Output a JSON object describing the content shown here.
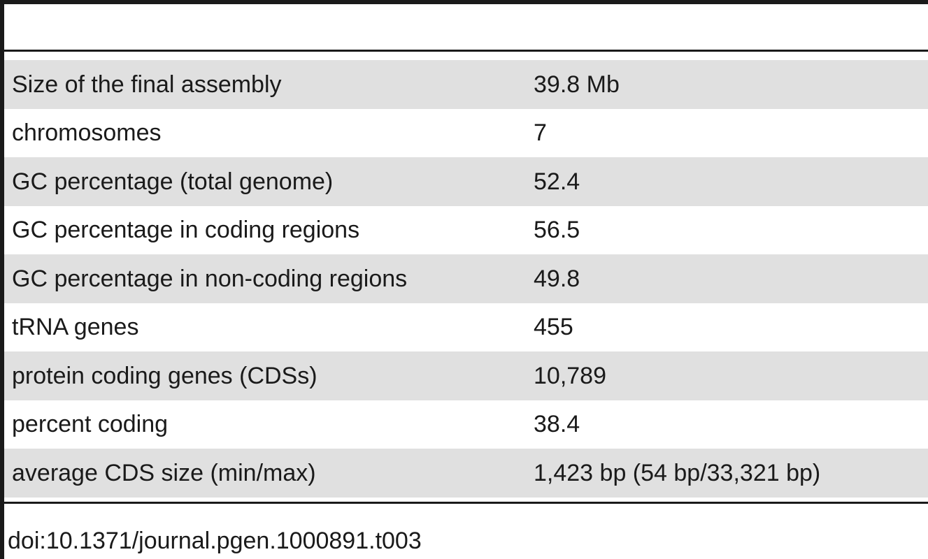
{
  "table": {
    "rows": [
      {
        "label": "Size of the final assembly",
        "value": "39.8 Mb"
      },
      {
        "label": "chromosomes",
        "value": "7"
      },
      {
        "label": "GC percentage (total genome)",
        "value": "52.4"
      },
      {
        "label": "GC percentage in coding regions",
        "value": "56.5"
      },
      {
        "label": "GC percentage in non-coding regions",
        "value": "49.8"
      },
      {
        "label": "tRNA genes",
        "value": "455"
      },
      {
        "label": "protein coding genes (CDSs)",
        "value": "10,789"
      },
      {
        "label": "percent coding",
        "value": "38.4"
      },
      {
        "label": "average CDS size (min/max)",
        "value": "1,423 bp (54 bp/33,321 bp)"
      }
    ],
    "shade_color": "#e0e0e0"
  },
  "footer": {
    "doi": "doi:10.1371/journal.pgen.1000891.t003"
  }
}
